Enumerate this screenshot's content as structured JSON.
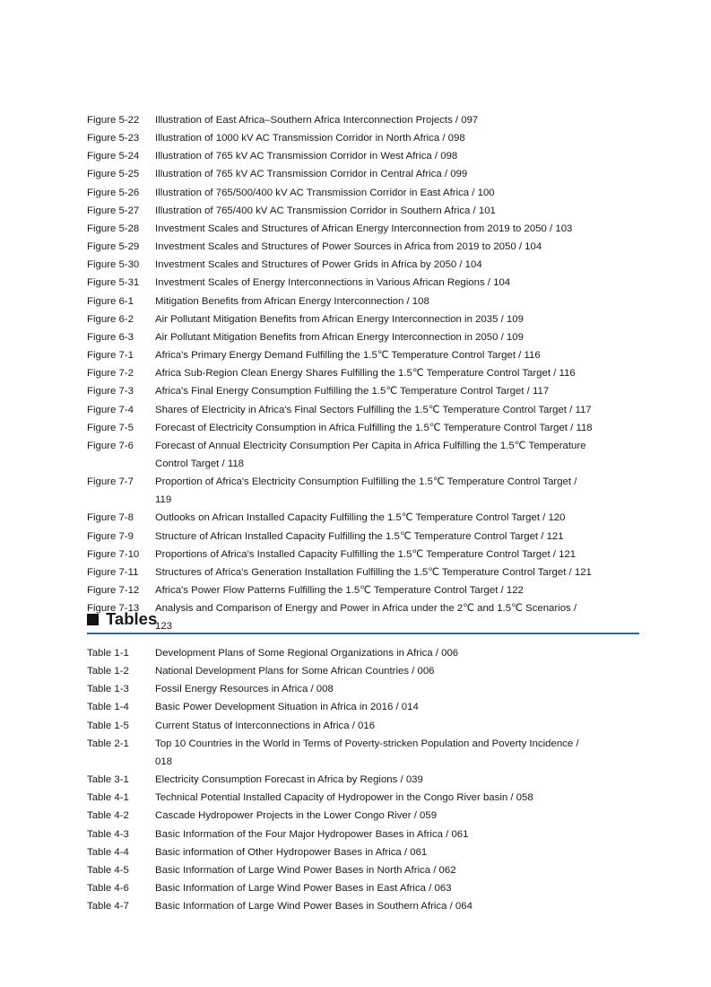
{
  "accent_color": "#1a6db5",
  "figures": [
    {
      "label": "Figure 5-22",
      "text": "Illustration of East Africa–Southern Africa Interconnection Projects / 097"
    },
    {
      "label": "Figure 5-23",
      "text": "Illustration of 1000 kV AC Transmission Corridor in North Africa / 098"
    },
    {
      "label": "Figure 5-24",
      "text": "Illustration of 765 kV AC Transmission Corridor in West Africa / 098"
    },
    {
      "label": "Figure 5-25",
      "text": "Illustration of 765 kV AC Transmission Corridor in Central Africa / 099"
    },
    {
      "label": "Figure 5-26",
      "text": "Illustration of 765/500/400 kV AC Transmission Corridor in East Africa / 100"
    },
    {
      "label": "Figure 5-27",
      "text": "Illustration of 765/400 kV AC Transmission Corridor in Southern Africa / 101"
    },
    {
      "label": "Figure 5-28",
      "text": "Investment Scales and Structures of African Energy Interconnection from 2019 to 2050 / 103"
    },
    {
      "label": "Figure 5-29",
      "text": "Investment Scales and Structures of Power Sources in Africa from 2019 to 2050 / 104"
    },
    {
      "label": "Figure 5-30",
      "text": "Investment Scales and Structures of Power Grids in Africa by 2050 / 104"
    },
    {
      "label": "Figure 5-31",
      "text": "Investment Scales of Energy Interconnections in Various African Regions / 104"
    },
    {
      "label": "Figure 6-1",
      "text": "Mitigation Benefits from African Energy Interconnection / 108"
    },
    {
      "label": "Figure 6-2",
      "text": "Air Pollutant Mitigation Benefits from African Energy Interconnection in 2035 / 109"
    },
    {
      "label": "Figure 6-3",
      "text": "Air Pollutant Mitigation Benefits from African Energy Interconnection in 2050 / 109"
    },
    {
      "label": "Figure 7-1",
      "text": "Africa's Primary Energy Demand Fulfilling the 1.5℃ Temperature Control Target / 116"
    },
    {
      "label": "Figure 7-2",
      "text": "Africa Sub-Region Clean Energy Shares Fulfilling the 1.5℃ Temperature Control Target / 116"
    },
    {
      "label": "Figure 7-3",
      "text": "Africa's Final Energy Consumption Fulfilling the 1.5℃ Temperature Control Target / 117"
    },
    {
      "label": "Figure 7-4",
      "text": "Shares of Electricity in Africa's Final Sectors Fulfilling the 1.5℃ Temperature Control Target / 117"
    },
    {
      "label": "Figure 7-5",
      "text": "Forecast of Electricity Consumption in Africa Fulfilling the 1.5℃ Temperature Control Target / 118"
    },
    {
      "label": "Figure 7-6",
      "text": "Forecast of Annual Electricity Consumption Per Capita in Africa Fulfilling the 1.5℃ Temperature Control Target / 118"
    },
    {
      "label": "Figure 7-7",
      "text": "Proportion of Africa's Electricity Consumption Fulfilling the 1.5℃ Temperature Control Target / 119"
    },
    {
      "label": "Figure 7-8",
      "text": "Outlooks on African Installed Capacity Fulfilling the 1.5℃ Temperature Control Target / 120"
    },
    {
      "label": "Figure 7-9",
      "text": "Structure of African Installed Capacity Fulfilling the 1.5℃ Temperature Control Target / 121"
    },
    {
      "label": "Figure 7-10",
      "text": "Proportions of Africa's Installed Capacity Fulfilling the 1.5℃ Temperature Control Target / 121"
    },
    {
      "label": "Figure 7-11",
      "text": "Structures of Africa's Generation Installation Fulfilling the 1.5℃ Temperature Control Target / 121"
    },
    {
      "label": "Figure 7-12",
      "text": "Africa's Power Flow Patterns Fulfilling the 1.5℃ Temperature Control Target / 122"
    },
    {
      "label": "Figure 7-13",
      "text": "Analysis and Comparison of Energy and Power in Africa under the 2℃ and 1.5℃ Scenarios / 123"
    }
  ],
  "tables_heading": "Tables",
  "tables": [
    {
      "label": "Table 1-1",
      "text": "Development Plans of Some Regional Organizations in Africa / 006"
    },
    {
      "label": "Table 1-2",
      "text": "National Development Plans for Some African Countries / 006"
    },
    {
      "label": "Table 1-3",
      "text": "Fossil Energy Resources in Africa / 008"
    },
    {
      "label": "Table 1-4",
      "text": "Basic Power Development Situation in Africa in 2016 / 014"
    },
    {
      "label": "Table 1-5",
      "text": "Current Status of Interconnections in Africa / 016"
    },
    {
      "label": "Table 2-1",
      "text": "Top 10 Countries in the World in Terms of Poverty-stricken Population and Poverty Incidence / 018"
    },
    {
      "label": "Table 3-1",
      "text": "Electricity Consumption Forecast in Africa by Regions / 039"
    },
    {
      "label": "Table 4-1",
      "text": "Technical Potential Installed Capacity of Hydropower in the Congo River basin / 058"
    },
    {
      "label": "Table 4-2",
      "text": "Cascade Hydropower Projects in the Lower Congo River / 059"
    },
    {
      "label": "Table 4-3",
      "text": "Basic Information of the Four Major Hydropower Bases in Africa / 061"
    },
    {
      "label": "Table 4-4",
      "text": "Basic information of Other Hydropower Bases in Africa / 061"
    },
    {
      "label": "Table 4-5",
      "text": "Basic Information of Large Wind Power Bases in North Africa / 062"
    },
    {
      "label": "Table 4-6",
      "text": "Basic Information of Large Wind Power Bases in East Africa / 063"
    },
    {
      "label": "Table 4-7",
      "text": "Basic Information of Large Wind Power Bases in Southern Africa / 064"
    }
  ]
}
